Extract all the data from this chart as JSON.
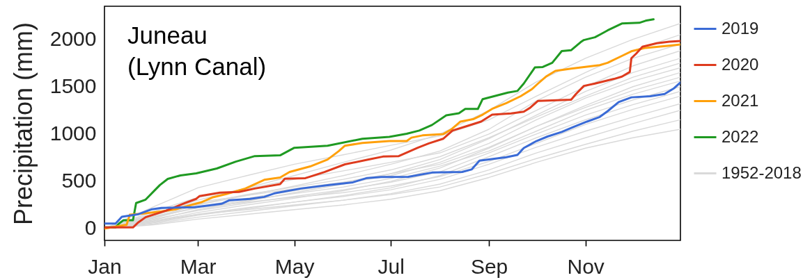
{
  "chart_data": {
    "type": "line",
    "title": "Juneau\n(Lynn Canal)",
    "ylabel": "Precipitation (mm)",
    "x": [
      "--01-01",
      "--02-01",
      "--03-01",
      "--04-01",
      "--05-01",
      "--06-01",
      "--07-01",
      "--08-01",
      "--09-01",
      "--10-01",
      "--11-01",
      "--12-01",
      "--12-31"
    ],
    "xlim": [
      "--01-01",
      "--12-31"
    ],
    "xticks": [
      {
        "value": "--01-01",
        "label": "Jan"
      },
      {
        "value": "--03-01",
        "label": "Mar"
      },
      {
        "value": "--05-01",
        "label": "May"
      },
      {
        "value": "--07-01",
        "label": "Jul"
      },
      {
        "value": "--09-01",
        "label": "Sep"
      },
      {
        "value": "--11-01",
        "label": "Nov"
      }
    ],
    "ylim": [
      -125,
      2350
    ],
    "yticks": [
      0,
      500,
      1000,
      1500,
      2000
    ],
    "legend": "right",
    "series": [
      {
        "name": "2019",
        "color": "#3a6bd6",
        "x": [
          "--01-01",
          "--01-08",
          "--01-12",
          "--01-22",
          "--01-31",
          "--02-06",
          "--02-27",
          "--03-06",
          "--03-16",
          "--03-21",
          "--04-03",
          "--04-12",
          "--04-19",
          "--05-05",
          "--05-23",
          "--06-07",
          "--06-16",
          "--06-25",
          "--07-12",
          "--07-27",
          "--08-15",
          "--08-21",
          "--08-26",
          "--09-01",
          "--09-12",
          "--09-19",
          "--09-23",
          "--10-01",
          "--10-08",
          "--10-17",
          "--10-24",
          "--11-02",
          "--11-10",
          "--11-15",
          "--11-22",
          "--11-30",
          "--12-12",
          "--12-21",
          "--12-27",
          "--12-31"
        ],
        "values": [
          53,
          53,
          124,
          150,
          204,
          219,
          226,
          241,
          262,
          300,
          314,
          335,
          375,
          423,
          460,
          489,
          535,
          546,
          547,
          592,
          598,
          625,
          718,
          730,
          754,
          779,
          852,
          925,
          973,
          1022,
          1071,
          1131,
          1180,
          1241,
          1338,
          1387,
          1399,
          1423,
          1484,
          1545
        ]
      },
      {
        "name": "2020",
        "color": "#de3b1e",
        "x": [
          "--01-01",
          "--01-19",
          "--01-22",
          "--01-27",
          "--02-09",
          "--02-21",
          "--02-28",
          "--03-02",
          "--03-15",
          "--03-27",
          "--04-06",
          "--04-22",
          "--04-25",
          "--05-08",
          "--05-20",
          "--06-02",
          "--06-17",
          "--06-26",
          "--07-06",
          "--07-11",
          "--07-18",
          "--07-25",
          "--08-03",
          "--08-09",
          "--08-18",
          "--08-27",
          "--09-03",
          "--09-15",
          "--09-23",
          "--09-27",
          "--10-02",
          "--10-23",
          "--10-26",
          "--10-31",
          "--11-07",
          "--11-19",
          "--11-24",
          "--11-29",
          "--11-30",
          "--12-03",
          "--12-07",
          "--12-16",
          "--12-24",
          "--12-31"
        ],
        "values": [
          12,
          12,
          60,
          120,
          190,
          270,
          314,
          343,
          380,
          387,
          423,
          470,
          526,
          533,
          598,
          679,
          730,
          761,
          766,
          803,
          854,
          900,
          949,
          1036,
          1083,
          1131,
          1204,
          1217,
          1236,
          1277,
          1350,
          1363,
          1423,
          1508,
          1533,
          1582,
          1606,
          1655,
          1801,
          1849,
          1922,
          1959,
          1976,
          1983
        ]
      },
      {
        "name": "2021",
        "color": "#ffa00a",
        "x": [
          "--01-01",
          "--01-11",
          "--01-15",
          "--01-17",
          "--01-26",
          "--02-06",
          "--02-15",
          "--02-23",
          "--03-03",
          "--03-10",
          "--03-19",
          "--03-31",
          "--04-12",
          "--04-22",
          "--04-28",
          "--05-11",
          "--05-22",
          "--05-29",
          "--06-02",
          "--06-13",
          "--06-30",
          "--07-11",
          "--07-14",
          "--07-21",
          "--08-03",
          "--08-08",
          "--08-14",
          "--08-22",
          "--08-28",
          "--09-03",
          "--09-12",
          "--09-21",
          "--09-28",
          "--10-02",
          "--10-07",
          "--10-13",
          "--10-23",
          "--11-10",
          "--11-15",
          "--11-24",
          "--11-30",
          "--12-09",
          "--12-24",
          "--12-31"
        ],
        "values": [
          0,
          30,
          40,
          146,
          160,
          182,
          204,
          241,
          277,
          328,
          365,
          423,
          515,
          540,
          598,
          657,
          730,
          818,
          876,
          905,
          925,
          925,
          961,
          985,
          998,
          1046,
          1131,
          1156,
          1204,
          1265,
          1326,
          1399,
          1472,
          1533,
          1606,
          1667,
          1691,
          1728,
          1752,
          1825,
          1874,
          1910,
          1934,
          1946
        ]
      },
      {
        "name": "2022",
        "color": "#1f9a22",
        "x": [
          "--01-01",
          "--01-08",
          "--01-10",
          "--01-13",
          "--01-19",
          "--01-21",
          "--01-27",
          "--02-05",
          "--02-10",
          "--02-18",
          "--02-28",
          "--03-13",
          "--03-25",
          "--04-06",
          "--04-22",
          "--05-01",
          "--05-22",
          "--06-13",
          "--06-30",
          "--07-11",
          "--07-19",
          "--07-27",
          "--08-05",
          "--08-13",
          "--08-17",
          "--08-25",
          "--08-28",
          "--09-13",
          "--09-19",
          "--09-23",
          "--09-30",
          "--10-05",
          "--10-11",
          "--10-17",
          "--10-23",
          "--10-29",
          "--10-31",
          "--11-07",
          "--11-11",
          "--11-15",
          "--11-24",
          "--12-05",
          "--12-09",
          "--12-14"
        ],
        "values": [
          12,
          12,
          50,
          88,
          88,
          270,
          306,
          460,
          525,
          562,
          584,
          635,
          708,
          766,
          774,
          854,
          876,
          949,
          969,
          1002,
          1036,
          1095,
          1197,
          1219,
          1265,
          1265,
          1368,
          1438,
          1455,
          1533,
          1703,
          1708,
          1752,
          1876,
          1886,
          1971,
          1993,
          2022,
          2058,
          2095,
          2168,
          2175,
          2197,
          2212
        ]
      },
      {
        "name": "1952-2018",
        "color": "#d9d9d9",
        "values": [
          0,
          150,
          300,
          430,
          560,
          700,
          830,
          1000,
          1250,
          1550,
          1800,
          2000,
          2168
        ]
      },
      {
        "color": "#d9d9d9",
        "values": [
          0,
          230,
          430,
          560,
          680,
          780,
          880,
          980,
          1150,
          1400,
          1650,
          1880,
          2050
        ]
      },
      {
        "color": "#d9d9d9",
        "values": [
          0,
          120,
          250,
          350,
          450,
          560,
          680,
          820,
          1050,
          1350,
          1600,
          1800,
          1950
        ]
      },
      {
        "color": "#d9d9d9",
        "values": [
          0,
          180,
          330,
          420,
          520,
          610,
          700,
          800,
          1000,
          1250,
          1500,
          1720,
          1880
        ]
      },
      {
        "color": "#d9d9d9",
        "values": [
          0,
          90,
          200,
          290,
          380,
          470,
          580,
          730,
          950,
          1200,
          1450,
          1650,
          1800
        ]
      },
      {
        "color": "#d9d9d9",
        "values": [
          0,
          140,
          260,
          360,
          440,
          520,
          620,
          760,
          960,
          1180,
          1400,
          1600,
          1750
        ]
      },
      {
        "color": "#d9d9d9",
        "values": [
          0,
          110,
          230,
          320,
          400,
          480,
          560,
          700,
          900,
          1150,
          1380,
          1560,
          1700
        ]
      },
      {
        "color": "#d9d9d9",
        "values": [
          0,
          160,
          280,
          350,
          420,
          490,
          580,
          680,
          860,
          1080,
          1300,
          1500,
          1650
        ]
      },
      {
        "color": "#d9d9d9",
        "values": [
          0,
          80,
          170,
          250,
          320,
          400,
          500,
          640,
          850,
          1080,
          1280,
          1460,
          1600
        ]
      },
      {
        "color": "#d9d9d9",
        "values": [
          0,
          120,
          220,
          300,
          370,
          440,
          530,
          660,
          820,
          1030,
          1250,
          1420,
          1560
        ]
      },
      {
        "color": "#d9d9d9",
        "values": [
          0,
          100,
          190,
          270,
          340,
          410,
          490,
          600,
          800,
          1000,
          1200,
          1360,
          1500
        ]
      },
      {
        "color": "#d9d9d9",
        "values": [
          0,
          60,
          140,
          210,
          280,
          350,
          430,
          560,
          760,
          960,
          1150,
          1310,
          1450
        ]
      },
      {
        "color": "#d9d9d9",
        "values": [
          0,
          130,
          220,
          280,
          330,
          380,
          450,
          550,
          710,
          900,
          1100,
          1260,
          1400
        ]
      },
      {
        "color": "#d9d9d9",
        "values": [
          0,
          70,
          150,
          220,
          280,
          340,
          410,
          520,
          680,
          860,
          1030,
          1180,
          1320
        ]
      },
      {
        "color": "#d9d9d9",
        "values": [
          0,
          50,
          120,
          180,
          240,
          300,
          370,
          470,
          620,
          800,
          960,
          1110,
          1250
        ]
      },
      {
        "color": "#d9d9d9",
        "values": [
          0,
          80,
          150,
          200,
          250,
          300,
          360,
          440,
          580,
          740,
          890,
          1030,
          1150
        ]
      },
      {
        "color": "#d9d9d9",
        "values": [
          0,
          40,
          100,
          150,
          200,
          250,
          310,
          400,
          540,
          700,
          850,
          960,
          1050
        ]
      }
    ]
  }
}
